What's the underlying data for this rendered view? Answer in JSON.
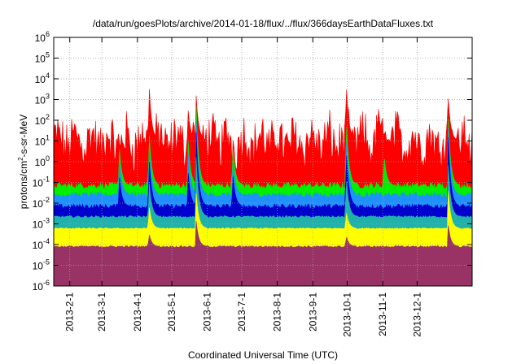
{
  "chart_data": {
    "type": "area",
    "title": "/data/run/goesPlots/archive/2014-01-18/flux/../flux/366daysEarthDataFluxes.txt",
    "xlabel": "Coordinated Universal Time (UTC)",
    "ylabel_main": "protons/cm",
    "ylabel_sup": "2",
    "ylabel_tail": "-s-sr-MeV",
    "x_range": [
      "2013-01-18",
      "2014-01-18"
    ],
    "x_ticks": [
      "2013-2-1",
      "2013-3-1",
      "2013-4-1",
      "2013-5-1",
      "2013-6-1",
      "2013-7-1",
      "2013-8-1",
      "2013-9-1",
      "2013-10-1",
      "2013-11-1",
      "2013-12-1"
    ],
    "y_scale": "log",
    "ylim": [
      1e-06,
      1000000.0
    ],
    "y_ticks": [
      {
        "base": "10",
        "exp": "6"
      },
      {
        "base": "10",
        "exp": "5"
      },
      {
        "base": "10",
        "exp": "4"
      },
      {
        "base": "10",
        "exp": "3"
      },
      {
        "base": "10",
        "exp": "2"
      },
      {
        "base": "10",
        "exp": "1"
      },
      {
        "base": "10",
        "exp": "0"
      },
      {
        "base": "10",
        "exp": "-1"
      },
      {
        "base": "10",
        "exp": "-2"
      },
      {
        "base": "10",
        "exp": "-3"
      },
      {
        "base": "10",
        "exp": "-4"
      },
      {
        "base": "10",
        "exp": "-5"
      },
      {
        "base": "10",
        "exp": "-6"
      }
    ],
    "grid": true,
    "series": [
      {
        "color": "#ff0000",
        "baseline": 10,
        "spread": 1.0,
        "spikes": [
          [
            "2013-04-11",
            11000
          ],
          [
            "2013-05-15",
            500
          ],
          [
            "2013-05-22",
            3000
          ],
          [
            "2013-09-30",
            13000
          ],
          [
            "2013-10-28",
            600
          ],
          [
            "2013-12-28",
            1500
          ]
        ]
      },
      {
        "color": "#00ee00",
        "baseline": 0.07,
        "spread": 0.15,
        "spikes": [
          [
            "2013-03-16",
            8
          ],
          [
            "2013-04-11",
            60
          ],
          [
            "2013-05-15",
            20
          ],
          [
            "2013-05-22",
            1500
          ],
          [
            "2013-06-23",
            10
          ],
          [
            "2013-09-30",
            250
          ],
          [
            "2013-11-02",
            3
          ],
          [
            "2013-12-28",
            200
          ]
        ]
      },
      {
        "color": "#1e90ff",
        "baseline": 0.025,
        "spread": 0.12,
        "spikes": [
          [
            "2013-03-16",
            2
          ],
          [
            "2013-04-11",
            10
          ],
          [
            "2013-05-15",
            5
          ],
          [
            "2013-05-22",
            300
          ],
          [
            "2013-06-23",
            2
          ],
          [
            "2013-09-30",
            40
          ],
          [
            "2013-12-28",
            80
          ]
        ]
      },
      {
        "color": "#0000cc",
        "baseline": 0.007,
        "spread": 0.12,
        "spikes": [
          [
            "2013-03-16",
            0.3
          ],
          [
            "2013-04-11",
            3
          ],
          [
            "2013-05-15",
            0.5
          ],
          [
            "2013-05-22",
            80
          ],
          [
            "2013-06-23",
            0.4
          ],
          [
            "2013-09-30",
            8
          ],
          [
            "2013-12-28",
            25
          ]
        ]
      },
      {
        "color": "#20b2aa",
        "baseline": 0.0022,
        "spread": 0.05,
        "spikes": [
          [
            "2013-04-11",
            0.2
          ],
          [
            "2013-05-22",
            4
          ],
          [
            "2013-09-30",
            0.3
          ],
          [
            "2013-12-28",
            1
          ]
        ]
      },
      {
        "color": "#ffff00",
        "baseline": 0.0006,
        "spread": 0.03,
        "spikes": [
          [
            "2013-04-11",
            0.01
          ],
          [
            "2013-05-22",
            0.05
          ],
          [
            "2013-09-30",
            0.005
          ],
          [
            "2013-12-28",
            0.05
          ]
        ]
      },
      {
        "color": "#993366",
        "baseline": 8e-05,
        "spread": 0.04,
        "spikes": [
          [
            "2013-04-11",
            0.0004
          ],
          [
            "2013-05-22",
            0.002
          ],
          [
            "2013-09-30",
            0.0003
          ],
          [
            "2013-12-28",
            0.001
          ]
        ]
      }
    ]
  }
}
